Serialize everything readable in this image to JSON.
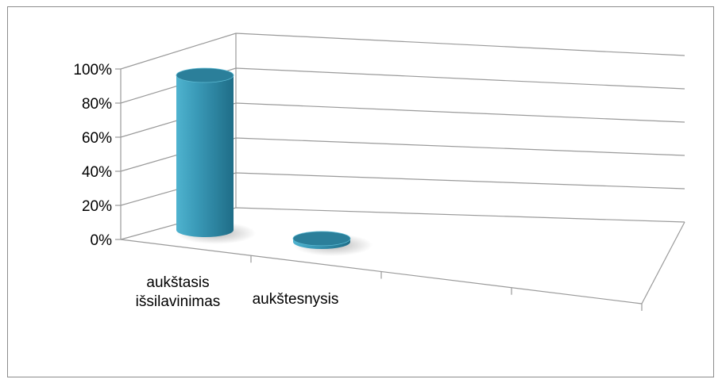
{
  "chart_data": {
    "type": "bar",
    "style": "3d-cylinder",
    "categories": [
      "aukštasis išsilavinimas",
      "aukštesnysis"
    ],
    "category_lines": [
      [
        "aukštasis",
        "išsilavinimas"
      ],
      [
        "aukštesnysis"
      ]
    ],
    "values": [
      95,
      2
    ],
    "ylim": [
      0,
      100
    ],
    "y_ticks": [
      0,
      20,
      40,
      60,
      80,
      100
    ],
    "y_tick_labels": [
      "0%",
      "20%",
      "40%",
      "60%",
      "80%",
      "100%"
    ],
    "grid": true,
    "legend": "none",
    "colors": {
      "bar": "#3a9ab8",
      "bar_dark": "#1f6f89",
      "bar_top": "#2b7f9a",
      "grid": "#9a9a9a"
    }
  }
}
